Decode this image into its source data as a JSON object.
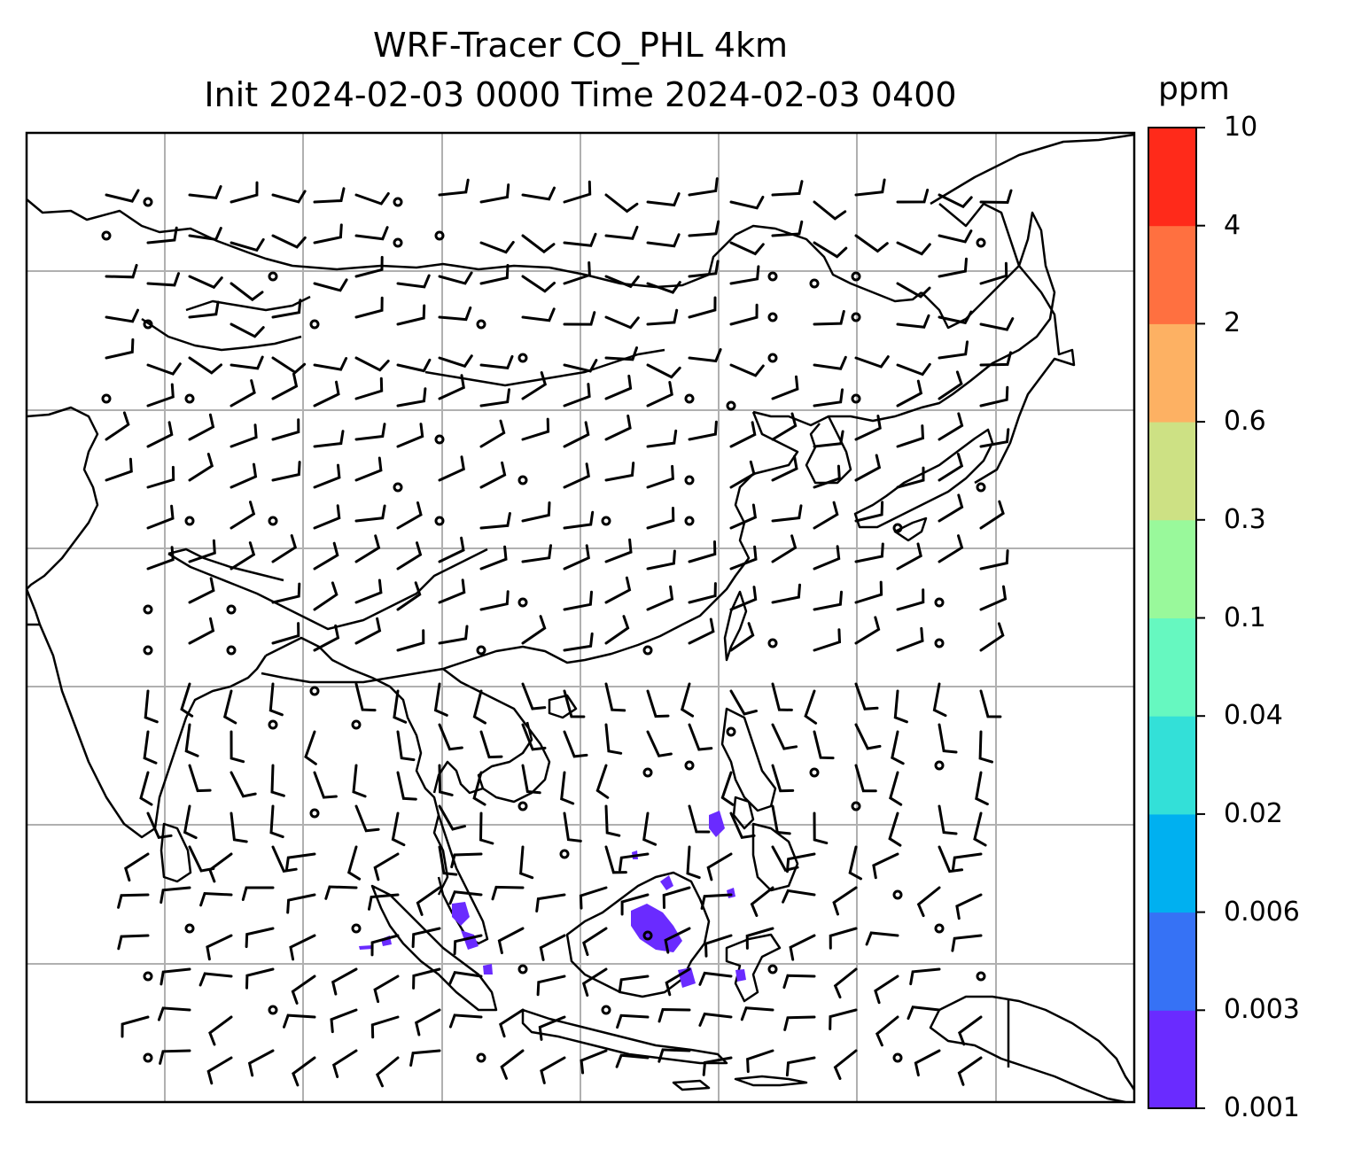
{
  "title": {
    "line1": "WRF-Tracer CO_PHL 4km",
    "line2": "Init 2024-02-03 0000 Time 2024-02-03 0400"
  },
  "colorbar": {
    "units": "ppm",
    "levels": [
      "0.001",
      "0.003",
      "0.006",
      "0.02",
      "0.04",
      "0.1",
      "0.3",
      "0.6",
      "2",
      "4",
      "10"
    ],
    "colors": [
      "#6a2bff",
      "#3672f5",
      "#00b0f0",
      "#33e0d8",
      "#66f8c0",
      "#99f99b",
      "#cde184",
      "#fdb163",
      "#ff7040",
      "#ff2a1a"
    ]
  },
  "map": {
    "region": "East and Southeast Asia",
    "gridlines": true,
    "tracer_color": "#6a2bff",
    "coastline_color": "#000000"
  }
}
